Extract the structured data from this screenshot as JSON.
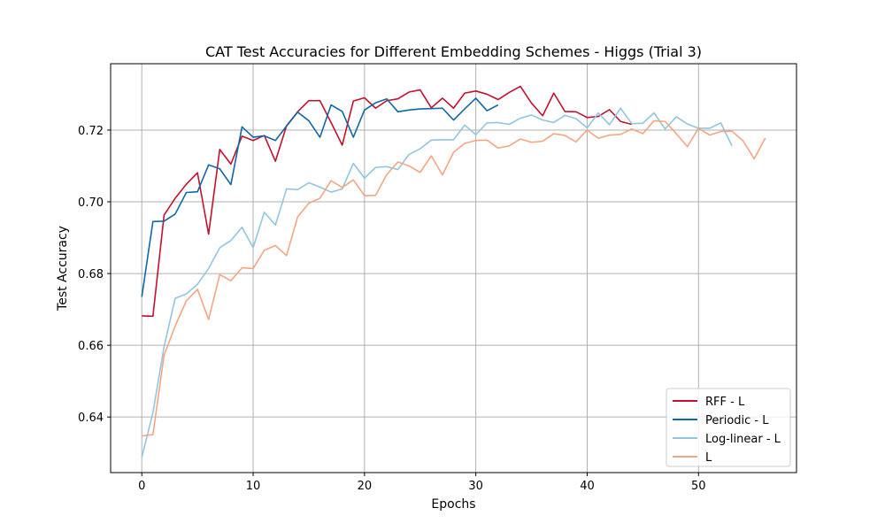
{
  "chart_data": {
    "type": "line",
    "title": "CAT Test Accuracies for Different Embedding Schemes - Higgs (Trial 3)",
    "xlabel": "Epochs",
    "ylabel": "Test Accuracy",
    "xlim": [
      -2.8,
      58.8
    ],
    "ylim": [
      0.6245,
      0.7385
    ],
    "xticks": [
      0,
      10,
      20,
      30,
      40,
      50
    ],
    "yticks": [
      0.64,
      0.66,
      0.68,
      0.7,
      0.72
    ],
    "ytick_labels": [
      "0.64",
      "0.66",
      "0.68",
      "0.70",
      "0.72"
    ],
    "grid": true,
    "legend_position": "lower-right",
    "series": [
      {
        "name": "RFF - L",
        "color": "#c4112e",
        "values": [
          0.6682,
          0.6681,
          0.6963,
          0.701,
          0.7049,
          0.7081,
          0.691,
          0.7146,
          0.7105,
          0.7183,
          0.7171,
          0.7185,
          0.7113,
          0.7212,
          0.7251,
          0.7282,
          0.7282,
          0.7221,
          0.7158,
          0.7281,
          0.729,
          0.7261,
          0.7282,
          0.7287,
          0.7306,
          0.7312,
          0.7262,
          0.7289,
          0.7261,
          0.7303,
          0.7309,
          0.73,
          0.7285,
          0.7305,
          0.7322,
          0.7275,
          0.724,
          0.7303,
          0.7252,
          0.7251,
          0.7235,
          0.7238,
          0.7257,
          0.7224,
          0.7216
        ]
      },
      {
        "name": "Periodic - L",
        "color": "#1068a8",
        "values": [
          0.6735,
          0.6945,
          0.6946,
          0.6966,
          0.7026,
          0.7028,
          0.7103,
          0.7092,
          0.7048,
          0.7209,
          0.718,
          0.7184,
          0.7171,
          0.7211,
          0.725,
          0.7226,
          0.718,
          0.727,
          0.7252,
          0.718,
          0.7256,
          0.7276,
          0.7287,
          0.7251,
          0.7256,
          0.7259,
          0.726,
          0.7261,
          0.7228,
          0.7259,
          0.7289,
          0.7254,
          0.727
        ]
      },
      {
        "name": "Log-linear - L",
        "color": "#92c5de",
        "values": [
          0.6288,
          0.6412,
          0.6596,
          0.6731,
          0.6743,
          0.677,
          0.6814,
          0.6872,
          0.6892,
          0.6929,
          0.6872,
          0.6971,
          0.6935,
          0.7036,
          0.7034,
          0.7053,
          0.7041,
          0.7027,
          0.7036,
          0.7107,
          0.7066,
          0.7096,
          0.7098,
          0.709,
          0.7132,
          0.7148,
          0.7172,
          0.7173,
          0.7173,
          0.7214,
          0.7187,
          0.722,
          0.7221,
          0.7216,
          0.7233,
          0.7242,
          0.7228,
          0.7221,
          0.7241,
          0.7232,
          0.7206,
          0.7248,
          0.7215,
          0.7261,
          0.7218,
          0.7219,
          0.7248,
          0.7203,
          0.7237,
          0.7217,
          0.7205,
          0.7205,
          0.722,
          0.7156
        ]
      },
      {
        "name": "L",
        "color": "#f4a582",
        "values": [
          0.6347,
          0.6351,
          0.6572,
          0.6654,
          0.6724,
          0.6756,
          0.6672,
          0.6797,
          0.678,
          0.6816,
          0.6814,
          0.6865,
          0.6878,
          0.685,
          0.6958,
          0.6996,
          0.701,
          0.7059,
          0.704,
          0.7061,
          0.7017,
          0.7018,
          0.7076,
          0.7111,
          0.71,
          0.7082,
          0.7128,
          0.7075,
          0.7138,
          0.7163,
          0.7171,
          0.7172,
          0.715,
          0.7156,
          0.7175,
          0.7166,
          0.7169,
          0.719,
          0.7185,
          0.7167,
          0.72,
          0.7177,
          0.7186,
          0.7188,
          0.7203,
          0.719,
          0.7226,
          0.7224,
          0.719,
          0.7154,
          0.7205,
          0.7186,
          0.7196,
          0.7197,
          0.717,
          0.712,
          0.7178
        ]
      }
    ]
  }
}
